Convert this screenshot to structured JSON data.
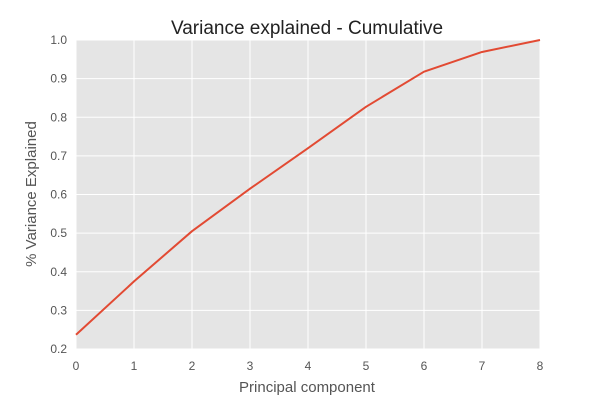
{
  "chart_data": {
    "type": "line",
    "title": "Variance explained - Cumulative",
    "xlabel": "Principal component",
    "ylabel": "% Variance Explained",
    "xlim": [
      0,
      8
    ],
    "ylim": [
      0.2,
      1.0
    ],
    "xticks": [
      "0",
      "1",
      "2",
      "3",
      "4",
      "5",
      "6",
      "7",
      "8"
    ],
    "yticks": [
      "0.2",
      "0.3",
      "0.4",
      "0.5",
      "0.6",
      "0.7",
      "0.8",
      "0.9",
      "1.0"
    ],
    "grid": true,
    "legend": "none",
    "series": [
      {
        "x": [
          0,
          1,
          2,
          3,
          4,
          5,
          6,
          7,
          8
        ],
        "values": [
          0.237,
          0.375,
          0.505,
          0.615,
          0.72,
          0.827,
          0.918,
          0.969,
          1.0
        ],
        "color": "#E24A33"
      }
    ],
    "colors": {
      "plot_background": "#E5E5E5",
      "grid": "#FFFFFF",
      "line": "#E24A33"
    }
  }
}
